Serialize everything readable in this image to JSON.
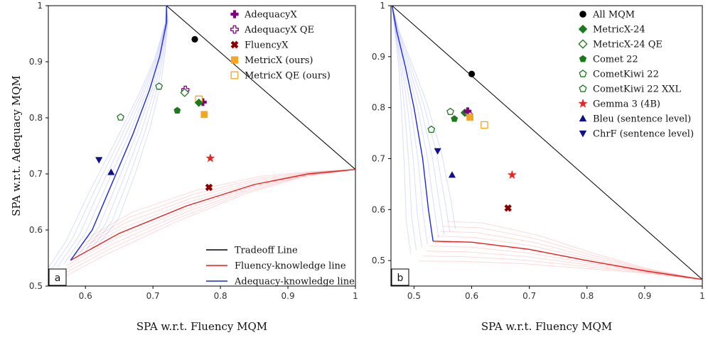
{
  "chart_data": [
    {
      "type": "scatter",
      "panel_label": "a",
      "xlabel": "SPA w.r.t. Fluency MQM",
      "ylabel": "SPA w.r.t. Adequacy MQM",
      "xlim": [
        0.545,
        1.0
      ],
      "ylim": [
        0.5,
        1.0
      ],
      "xticks": [
        "0.6",
        "0.7",
        "0.8",
        "0.9",
        "1"
      ],
      "yticks": [
        "0.5",
        "0.6",
        "0.7",
        "0.8",
        "0.9",
        "1"
      ],
      "tradeoff_line": [
        [
          0.72,
          1.0
        ],
        [
          1.0,
          0.708
        ]
      ],
      "fluency_knowledge_line": [
        [
          0.578,
          0.546
        ],
        [
          0.65,
          0.594
        ],
        [
          0.75,
          0.643
        ],
        [
          0.85,
          0.681
        ],
        [
          0.93,
          0.7
        ],
        [
          1.0,
          0.708
        ]
      ],
      "adequacy_knowledge_line": [
        [
          0.578,
          0.546
        ],
        [
          0.61,
          0.6
        ],
        [
          0.64,
          0.685
        ],
        [
          0.67,
          0.77
        ],
        [
          0.695,
          0.85
        ],
        [
          0.71,
          0.91
        ],
        [
          0.72,
          0.97
        ],
        [
          0.72,
          1.0
        ]
      ],
      "points": [
        {
          "name": "All MQM",
          "marker": "circle",
          "color": "#000000",
          "x": 0.762,
          "y": 0.94
        },
        {
          "name": "AdequacyX",
          "marker": "plus",
          "color": "#800080",
          "x": 0.774,
          "y": 0.828
        },
        {
          "name": "AdequacyX QE",
          "marker": "plus-open",
          "color": "#800080",
          "x": 0.748,
          "y": 0.85
        },
        {
          "name": "FluencyX",
          "marker": "x",
          "color": "#8b0000",
          "x": 0.783,
          "y": 0.676
        },
        {
          "name": "MetricX (ours)",
          "marker": "square",
          "color": "#f5a623",
          "x": 0.776,
          "y": 0.806
        },
        {
          "name": "MetricX QE (ours)",
          "marker": "square-open",
          "color": "#f5a623",
          "x": 0.768,
          "y": 0.833
        },
        {
          "name": "MetricX-24",
          "marker": "diamond",
          "color": "#1b7a1b",
          "x": 0.768,
          "y": 0.827
        },
        {
          "name": "MetricX-24 QE",
          "marker": "diamond-open",
          "color": "#1b7a1b",
          "x": 0.747,
          "y": 0.845
        },
        {
          "name": "Comet 22",
          "marker": "pentagon",
          "color": "#1b7a1b",
          "x": 0.736,
          "y": 0.813
        },
        {
          "name": "CometKiwi 22",
          "marker": "pentagon-open",
          "color": "#1b7a1b",
          "x": 0.652,
          "y": 0.801
        },
        {
          "name": "CometKiwi 22 XXL",
          "marker": "pentagon-open",
          "color": "#1b7a1b",
          "x": 0.709,
          "y": 0.856
        },
        {
          "name": "Gemma 3 (4B)",
          "marker": "star",
          "color": "#ee2222",
          "x": 0.785,
          "y": 0.728
        },
        {
          "name": "Bleu (sentence level)",
          "marker": "triangle-up",
          "color": "#10108a",
          "x": 0.638,
          "y": 0.703
        },
        {
          "name": "ChrF (sentence level)",
          "marker": "triangle-down",
          "color": "#10108a",
          "x": 0.62,
          "y": 0.725
        }
      ],
      "legend_top": [
        "AdequacyX",
        "AdequacyX QE",
        "FluencyX",
        "MetricX (ours)",
        "MetricX QE (ours)"
      ],
      "legend_bottom": [
        "Tradeoff Line",
        "Fluency-knowledge line",
        "Adequacy-knowledge line"
      ]
    },
    {
      "type": "scatter",
      "panel_label": "b",
      "xlabel": "SPA w.r.t. Fluency MQM",
      "ylabel": "",
      "xlim": [
        0.46,
        1.0
      ],
      "ylim": [
        0.45,
        1.0
      ],
      "xticks": [
        "0.5",
        "0.6",
        "0.7",
        "0.8",
        "0.9",
        "1"
      ],
      "yticks": [
        "0.5",
        "0.6",
        "0.7",
        "0.8",
        "0.9",
        "1"
      ],
      "tradeoff_line": [
        [
          0.462,
          1.0
        ],
        [
          1.0,
          0.463
        ]
      ],
      "fluency_knowledge_line": [
        [
          0.533,
          0.538
        ],
        [
          0.6,
          0.536
        ],
        [
          0.7,
          0.522
        ],
        [
          0.8,
          0.5
        ],
        [
          0.9,
          0.48
        ],
        [
          1.0,
          0.463
        ]
      ],
      "adequacy_knowledge_line": [
        [
          0.533,
          0.538
        ],
        [
          0.525,
          0.6
        ],
        [
          0.515,
          0.7
        ],
        [
          0.5,
          0.8
        ],
        [
          0.485,
          0.88
        ],
        [
          0.47,
          0.95
        ],
        [
          0.462,
          1.0
        ]
      ],
      "points": [
        {
          "name": "All MQM",
          "marker": "circle",
          "color": "#000000",
          "x": 0.6,
          "y": 0.866
        },
        {
          "name": "MetricX-24",
          "marker": "diamond",
          "color": "#1b7a1b",
          "x": 0.588,
          "y": 0.79
        },
        {
          "name": "MetricX-24 QE",
          "marker": "diamond-open",
          "color": "#1b7a1b",
          "x": 0.595,
          "y": 0.787
        },
        {
          "name": "Comet 22",
          "marker": "pentagon",
          "color": "#1b7a1b",
          "x": 0.57,
          "y": 0.778
        },
        {
          "name": "CometKiwi 22",
          "marker": "pentagon-open",
          "color": "#1b7a1b",
          "x": 0.53,
          "y": 0.757
        },
        {
          "name": "CometKiwi 22 XXL",
          "marker": "pentagon-open",
          "color": "#1b7a1b",
          "x": 0.563,
          "y": 0.792
        },
        {
          "name": "Gemma 3 (4B)",
          "marker": "star",
          "color": "#ee2222",
          "x": 0.67,
          "y": 0.668
        },
        {
          "name": "Bleu (sentence level)",
          "marker": "triangle-up",
          "color": "#10108a",
          "x": 0.566,
          "y": 0.668
        },
        {
          "name": "ChrF (sentence level)",
          "marker": "triangle-down",
          "color": "#10108a",
          "x": 0.541,
          "y": 0.715
        },
        {
          "name": "AdequacyX",
          "marker": "plus",
          "color": "#800080",
          "x": 0.593,
          "y": 0.793
        },
        {
          "name": "FluencyX",
          "marker": "x",
          "color": "#8b0000",
          "x": 0.663,
          "y": 0.603
        },
        {
          "name": "MetricX (ours)",
          "marker": "square",
          "color": "#f5a623",
          "x": 0.597,
          "y": 0.781
        },
        {
          "name": "MetricX QE (ours)",
          "marker": "square-open",
          "color": "#f5a623",
          "x": 0.622,
          "y": 0.766
        }
      ],
      "legend_top": [
        "All MQM",
        "MetricX-24",
        "MetricX-24 QE",
        "Comet 22",
        "CometKiwi 22",
        "CometKiwi 22 XXL",
        "Gemma 3 (4B)",
        "Bleu (sentence level)",
        "ChrF (sentence level)"
      ]
    }
  ]
}
